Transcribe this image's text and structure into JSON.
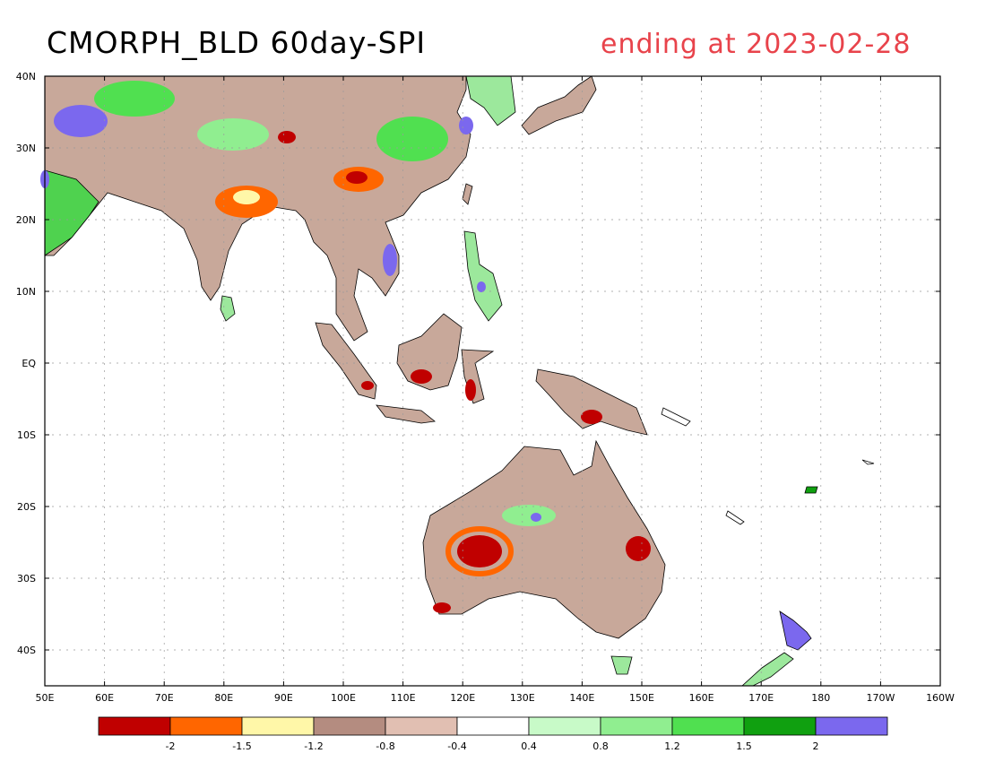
{
  "title": "CMORPH_BLD 60day-SPI",
  "date_label": "ending at 2023-02-28",
  "lat_labels": [
    "40N",
    "30N",
    "20N",
    "10N",
    "EQ",
    "10S",
    "20S",
    "30S",
    "40S"
  ],
  "lon_labels": [
    "50E",
    "60E",
    "70E",
    "80E",
    "90E",
    "100E",
    "110E",
    "120E",
    "130E",
    "140E",
    "150E",
    "160E",
    "170E",
    "180",
    "170W",
    "160W"
  ],
  "legend": {
    "colors": [
      "#c00000",
      "#ff6600",
      "#fff7a8",
      "#b48c80",
      "#e1bfb2",
      "#ffffff",
      "#c8fac8",
      "#90ee90",
      "#50e050",
      "#10a010",
      "#7b68ee"
    ],
    "labels": [
      "-2",
      "-1.5",
      "-1.2",
      "-0.8",
      "-0.4",
      "0.4",
      "0.8",
      "1.2",
      "1.5",
      "2"
    ]
  }
}
